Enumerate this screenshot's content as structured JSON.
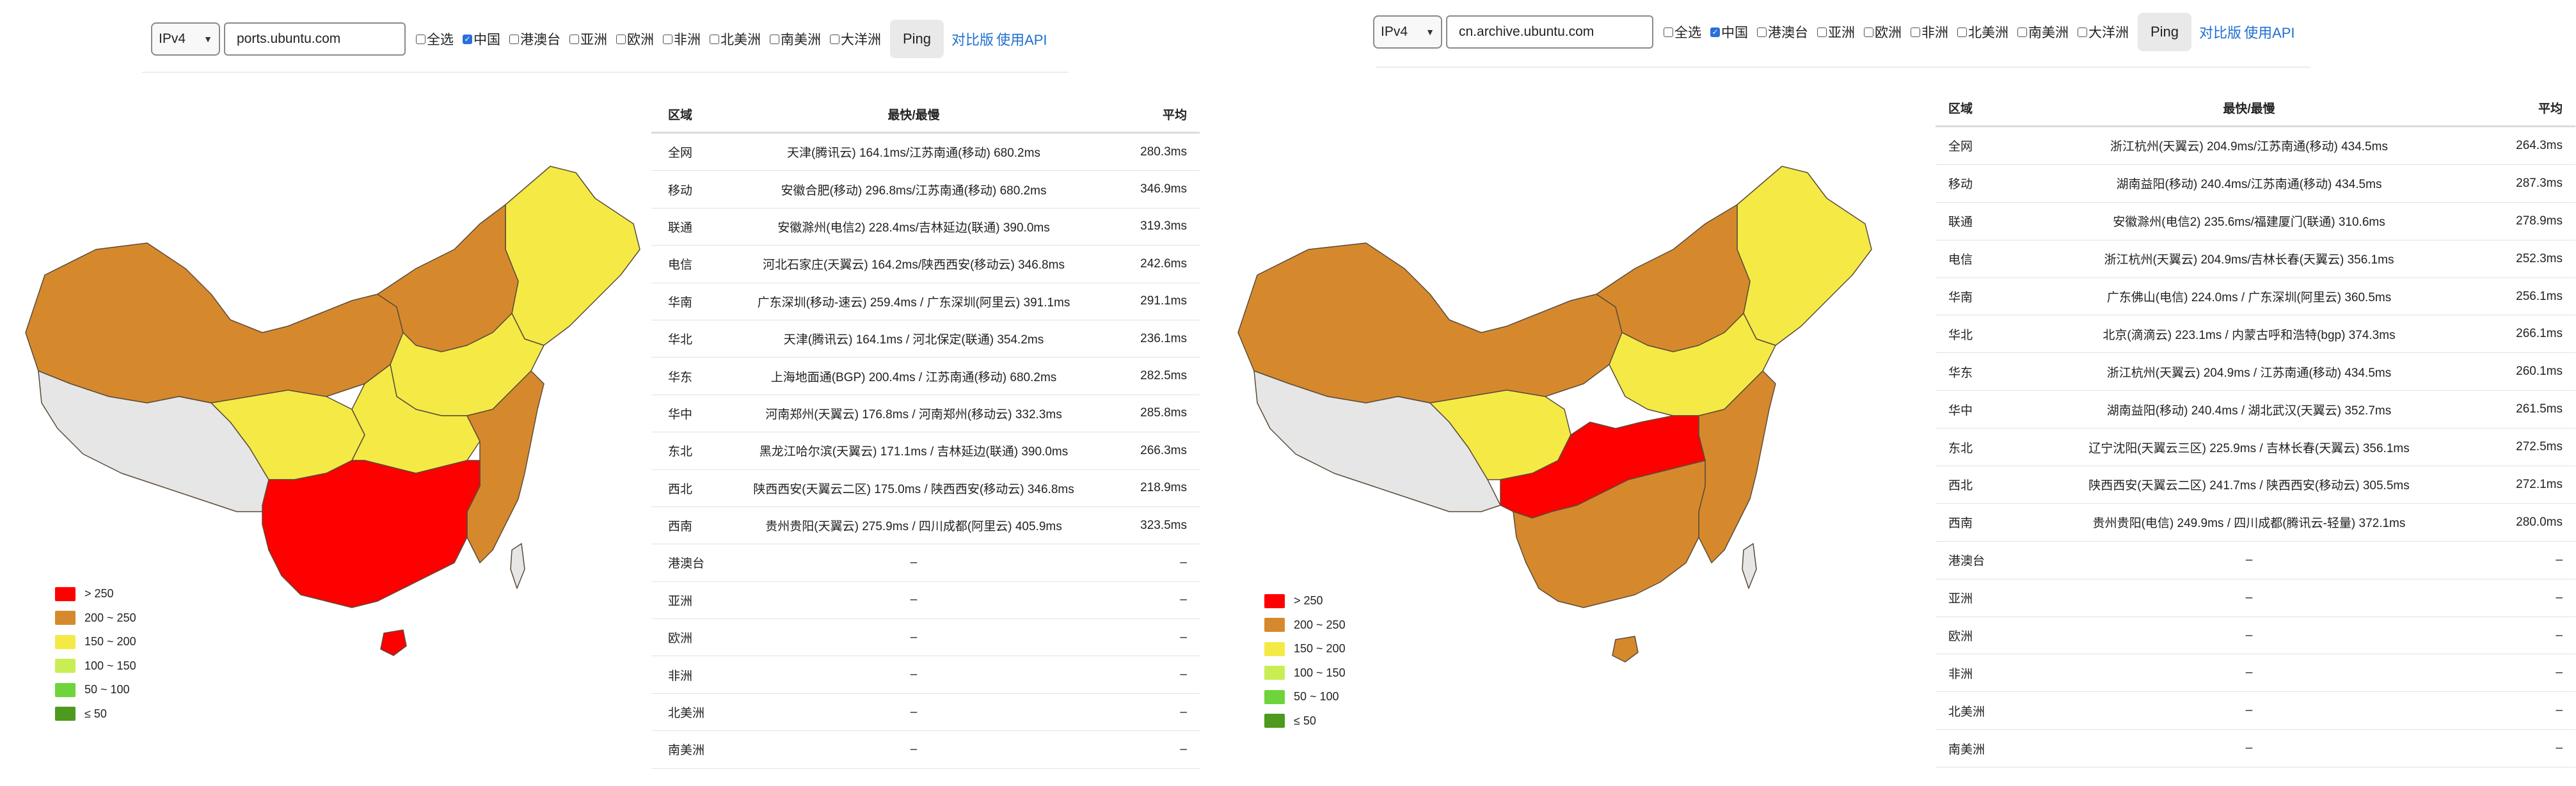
{
  "colors": {
    "gt250": "#ff0000",
    "r200_250": "#d6892c",
    "r150_200": "#f5ea45",
    "r100_150": "#c9ee54",
    "r50_100": "#6fd43c",
    "le50": "#4c9a1e",
    "nodata": "#e6e6e6"
  },
  "legend": [
    {
      "label": "> 250",
      "color": "#ff0000"
    },
    {
      "label": "200 ~ 250",
      "color": "#d6892c"
    },
    {
      "label": "150 ~ 200",
      "color": "#f5ea45"
    },
    {
      "label": "100 ~ 150",
      "color": "#c9ee54"
    },
    {
      "label": "50 ~ 100",
      "color": "#6fd43c"
    },
    {
      "label": "≤ 50",
      "color": "#4c9a1e"
    }
  ],
  "checkboxes": [
    {
      "label": "全选",
      "checked": false
    },
    {
      "label": "中国",
      "checked": true
    },
    {
      "label": "港澳台",
      "checked": false
    },
    {
      "label": "亚洲",
      "checked": false
    },
    {
      "label": "欧洲",
      "checked": false
    },
    {
      "label": "非洲",
      "checked": false
    },
    {
      "label": "北美洲",
      "checked": false
    },
    {
      "label": "南美洲",
      "checked": false
    },
    {
      "label": "大洋洲",
      "checked": false
    }
  ],
  "table_headers": {
    "region": "区域",
    "fast_slow": "最快/最慢",
    "avg": "平均"
  },
  "left": {
    "protocol": "IPv4",
    "host": "ports.ubuntu.com",
    "ping_label": "Ping",
    "compare_link": "对比版",
    "api_link": "使用API",
    "rows": [
      {
        "region": "全网",
        "fast_slow": "天津(腾讯云) 164.1ms/江苏南通(移动) 680.2ms",
        "avg": "280.3ms"
      },
      {
        "region": "移动",
        "fast_slow": "安徽合肥(移动) 296.8ms/江苏南通(移动) 680.2ms",
        "avg": "346.9ms"
      },
      {
        "region": "联通",
        "fast_slow": "安徽滁州(电信2) 228.4ms/吉林延边(联通) 390.0ms",
        "avg": "319.3ms"
      },
      {
        "region": "电信",
        "fast_slow": "河北石家庄(天翼云) 164.2ms/陕西西安(移动云) 346.8ms",
        "avg": "242.6ms"
      },
      {
        "region": "华南",
        "fast_slow": "广东深圳(移动-速云) 259.4ms / 广东深圳(阿里云) 391.1ms",
        "avg": "291.1ms"
      },
      {
        "region": "华北",
        "fast_slow": "天津(腾讯云) 164.1ms / 河北保定(联通) 354.2ms",
        "avg": "236.1ms"
      },
      {
        "region": "华东",
        "fast_slow": "上海地面通(BGP) 200.4ms / 江苏南通(移动) 680.2ms",
        "avg": "282.5ms"
      },
      {
        "region": "华中",
        "fast_slow": "河南郑州(天翼云) 176.8ms / 河南郑州(移动云) 332.3ms",
        "avg": "285.8ms"
      },
      {
        "region": "东北",
        "fast_slow": "黑龙江哈尔滨(天翼云) 171.1ms / 吉林延边(联通) 390.0ms",
        "avg": "266.3ms"
      },
      {
        "region": "西北",
        "fast_slow": "陕西西安(天翼云二区) 175.0ms / 陕西西安(移动云) 346.8ms",
        "avg": "218.9ms"
      },
      {
        "region": "西南",
        "fast_slow": "贵州贵阳(天翼云) 275.9ms / 四川成都(阿里云) 405.9ms",
        "avg": "323.5ms"
      },
      {
        "region": "港澳台",
        "fast_slow": "–",
        "avg": "–"
      },
      {
        "region": "亚洲",
        "fast_slow": "–",
        "avg": "–"
      },
      {
        "region": "欧洲",
        "fast_slow": "–",
        "avg": "–"
      },
      {
        "region": "非洲",
        "fast_slow": "–",
        "avg": "–"
      },
      {
        "region": "北美洲",
        "fast_slow": "–",
        "avg": "–"
      },
      {
        "region": "南美洲",
        "fast_slow": "–",
        "avg": "–"
      }
    ]
  },
  "right": {
    "protocol": "IPv4",
    "host": "cn.archive.ubuntu.com",
    "ping_label": "Ping",
    "compare_link": "对比版",
    "api_link": "使用API",
    "rows": [
      {
        "region": "全网",
        "fast_slow": "浙江杭州(天翼云) 204.9ms/江苏南通(移动) 434.5ms",
        "avg": "264.3ms"
      },
      {
        "region": "移动",
        "fast_slow": "湖南益阳(移动) 240.4ms/江苏南通(移动) 434.5ms",
        "avg": "287.3ms"
      },
      {
        "region": "联通",
        "fast_slow": "安徽滁州(电信2) 235.6ms/福建厦门(联通) 310.6ms",
        "avg": "278.9ms"
      },
      {
        "region": "电信",
        "fast_slow": "浙江杭州(天翼云) 204.9ms/吉林长春(天翼云) 356.1ms",
        "avg": "252.3ms"
      },
      {
        "region": "华南",
        "fast_slow": "广东佛山(电信) 224.0ms / 广东深圳(阿里云) 360.5ms",
        "avg": "256.1ms"
      },
      {
        "region": "华北",
        "fast_slow": "北京(滴滴云) 223.1ms / 内蒙古呼和浩特(bgp) 374.3ms",
        "avg": "266.1ms"
      },
      {
        "region": "华东",
        "fast_slow": "浙江杭州(天翼云) 204.9ms / 江苏南通(移动) 434.5ms",
        "avg": "260.1ms"
      },
      {
        "region": "华中",
        "fast_slow": "湖南益阳(移动) 240.4ms / 湖北武汉(天翼云) 352.7ms",
        "avg": "261.5ms"
      },
      {
        "region": "东北",
        "fast_slow": "辽宁沈阳(天翼云三区) 225.9ms / 吉林长春(天翼云) 356.1ms",
        "avg": "272.5ms"
      },
      {
        "region": "西北",
        "fast_slow": "陕西西安(天翼云二区) 241.7ms / 陕西西安(移动云) 305.5ms",
        "avg": "272.1ms"
      },
      {
        "region": "西南",
        "fast_slow": "贵州贵阳(电信) 249.9ms / 四川成都(腾讯云-轻量) 372.1ms",
        "avg": "280.0ms"
      },
      {
        "region": "港澳台",
        "fast_slow": "–",
        "avg": "–"
      },
      {
        "region": "亚洲",
        "fast_slow": "–",
        "avg": "–"
      },
      {
        "region": "欧洲",
        "fast_slow": "–",
        "avg": "–"
      },
      {
        "region": "非洲",
        "fast_slow": "–",
        "avg": "–"
      },
      {
        "region": "北美洲",
        "fast_slow": "–",
        "avg": "–"
      },
      {
        "region": "南美洲",
        "fast_slow": "–",
        "avg": "–"
      }
    ]
  }
}
